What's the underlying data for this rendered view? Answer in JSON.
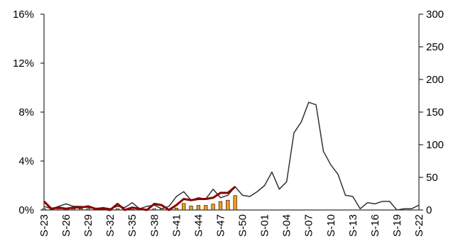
{
  "chart_data": {
    "type": "bar-line",
    "categories": [
      "S-23",
      null,
      null,
      "S-26",
      null,
      null,
      "S-29",
      null,
      null,
      "S-32",
      null,
      null,
      "S-35",
      null,
      null,
      "S-38",
      null,
      null,
      "S-41",
      null,
      null,
      "S-44",
      null,
      null,
      "S-47",
      null,
      null,
      "S-50",
      null,
      null,
      "S-01",
      null,
      null,
      "S-04",
      null,
      null,
      "S-07",
      null,
      null,
      "S-10",
      null,
      null,
      "S-13",
      null,
      null,
      "S-16",
      null,
      null,
      "S-19",
      null,
      null,
      "S-22"
    ],
    "series": [
      {
        "type": "bar",
        "color": "#f39c1f",
        "axis": "y2",
        "values": [
          2,
          1,
          2,
          1,
          2,
          2,
          2,
          1,
          1,
          1,
          2,
          1,
          1,
          1,
          1,
          2,
          2,
          1,
          3,
          10,
          6,
          7,
          7,
          9,
          13,
          15,
          22,
          null,
          null,
          null,
          null,
          null,
          null,
          null,
          null,
          null,
          null,
          null,
          null,
          null,
          null,
          null,
          null,
          null,
          null,
          null,
          null,
          null,
          null,
          null,
          null,
          null
        ]
      },
      {
        "type": "line",
        "color": "#333333",
        "values": [
          0.3,
          0.1,
          0.3,
          0.5,
          0.3,
          0.3,
          0.2,
          0.1,
          0.2,
          0.1,
          0.3,
          0.2,
          0.6,
          0.1,
          0.3,
          0.4,
          0.1,
          0.3,
          1.1,
          1.5,
          0.8,
          1.0,
          0.9,
          1.7,
          1.0,
          1.2,
          1.9,
          1.2,
          1.1,
          1.5,
          2.0,
          3.1,
          1.7,
          2.3,
          6.3,
          7.2,
          8.8,
          8.6,
          4.8,
          3.7,
          2.9,
          1.2,
          1.1,
          0.1,
          0.6,
          0.5,
          0.7,
          0.7,
          0.0,
          0.1,
          0.1,
          0.4
        ]
      },
      {
        "type": "line",
        "color": "#8b0000",
        "values": [
          0.7,
          0.1,
          0.2,
          0.1,
          0.2,
          0.2,
          0.3,
          0.1,
          0.1,
          0.0,
          0.5,
          0.0,
          0.2,
          0.1,
          0.0,
          0.5,
          0.4,
          0.0,
          0.4,
          0.9,
          0.8,
          0.9,
          0.9,
          1.0,
          1.4,
          1.4,
          1.9,
          null,
          null,
          null,
          null,
          null,
          null,
          null,
          null,
          null,
          null,
          null,
          null,
          null,
          null,
          null,
          null,
          null,
          null,
          null,
          null,
          null,
          null,
          null,
          null,
          null
        ]
      }
    ],
    "ylim": [
      0,
      16
    ],
    "yticks": [
      {
        "value": 0,
        "label": "0%"
      },
      {
        "value": 4,
        "label": "4%"
      },
      {
        "value": 8,
        "label": "8%"
      },
      {
        "value": 12,
        "label": "12%"
      },
      {
        "value": 16,
        "label": "16%"
      }
    ],
    "y2lim": [
      0,
      300
    ],
    "y2ticks": [
      0,
      50,
      100,
      150,
      200,
      250,
      300
    ]
  }
}
